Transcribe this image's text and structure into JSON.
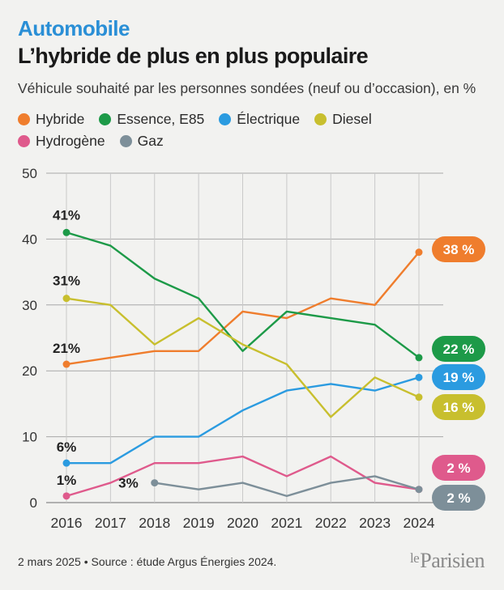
{
  "header": {
    "kicker": "Automobile",
    "title": "L’hybride de plus en plus populaire",
    "subtitle": "Véhicule souhaité par les personnes sondées (neuf ou d’occasion), en %"
  },
  "footer": {
    "source": "2 mars 2025 • Source : étude Argus Énergies 2024.",
    "logo_prefix": "le",
    "logo_name": "Parisien"
  },
  "chart_data": {
    "type": "line",
    "x": [
      2016,
      2017,
      2018,
      2019,
      2020,
      2021,
      2022,
      2023,
      2024
    ],
    "xticks": [
      "2016",
      "2017",
      "2018",
      "2019",
      "2020",
      "2021",
      "2022",
      "2023",
      "2024"
    ],
    "ylim": [
      0,
      50
    ],
    "yticks": [
      0,
      10,
      20,
      30,
      40,
      50
    ],
    "grid": true,
    "legend": "top",
    "series": [
      {
        "name": "Hybride",
        "color": "#ef7d2d",
        "values": [
          21,
          22,
          23,
          23,
          29,
          28,
          31,
          30,
          38
        ],
        "start_label": "21%",
        "end_label": "38 %"
      },
      {
        "name": "Essence, E85",
        "color": "#1d9a48",
        "values": [
          41,
          39,
          34,
          31,
          23,
          29,
          28,
          27,
          22
        ],
        "start_label": "41%",
        "end_label": "22 %"
      },
      {
        "name": "Électrique",
        "color": "#2b9be0",
        "values": [
          6,
          6,
          10,
          10,
          14,
          17,
          18,
          17,
          19
        ],
        "start_label": "6%",
        "end_label": "19 %"
      },
      {
        "name": "Diesel",
        "color": "#c8bf2e",
        "values": [
          31,
          30,
          24,
          28,
          24,
          21,
          13,
          19,
          16
        ],
        "start_label": "31%",
        "end_label": "16 %"
      },
      {
        "name": "Hydrogène",
        "color": "#df5a8c",
        "values": [
          1,
          3,
          6,
          6,
          7,
          4,
          7,
          3,
          2
        ],
        "start_label": "1%",
        "end_label": "2 %"
      },
      {
        "name": "Gaz",
        "color": "#7d8f99",
        "values": [
          null,
          null,
          3,
          2,
          3,
          1,
          3,
          4,
          2
        ],
        "start_label": "3%",
        "end_label": "2 %"
      }
    ]
  }
}
